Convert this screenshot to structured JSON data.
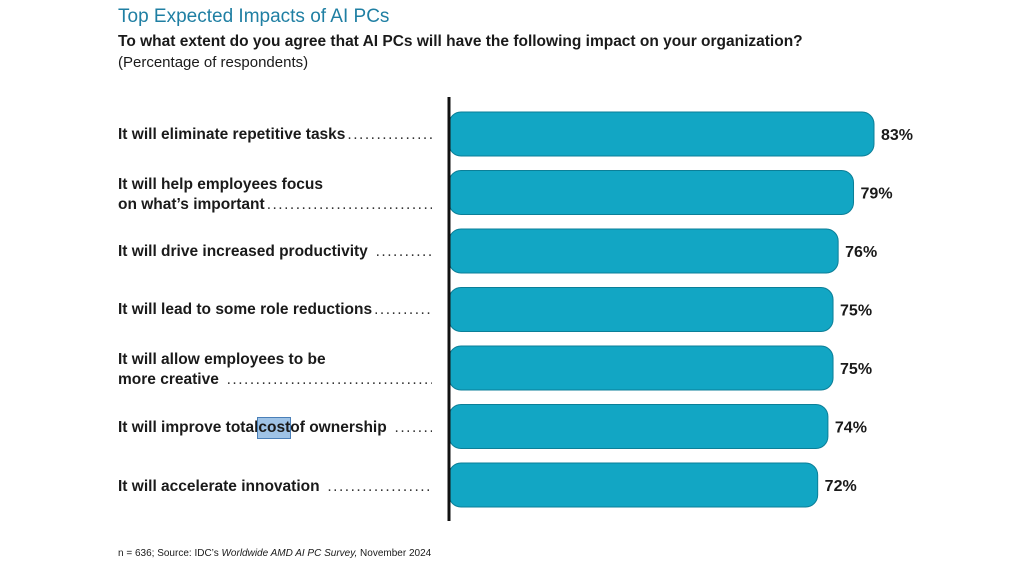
{
  "header": {
    "title": "Top Expected Impacts of AI PCs",
    "question": "To what extent do you agree that AI PCs will have the following impact on your organization?",
    "note": "(Percentage of respondents)"
  },
  "rows": [
    {
      "lines": [
        "It will eliminate repetitive tasks"
      ],
      "value_label": "83%"
    },
    {
      "lines": [
        "It will help employees focus",
        "on what’s important"
      ],
      "value_label": "79%"
    },
    {
      "lines": [
        "It will drive increased productivity"
      ],
      "value_label": "76%"
    },
    {
      "lines": [
        "It will lead to some role reductions"
      ],
      "value_label": "75%"
    },
    {
      "lines": [
        "It will allow employees to be",
        "more creative"
      ],
      "value_label": "75%"
    },
    {
      "lines": [
        "It will improve total ",
        "cost",
        " of ownership"
      ],
      "value_label": "74%"
    },
    {
      "lines": [
        "It will accelerate innovation"
      ],
      "value_label": "72%"
    }
  ],
  "footer": {
    "prefix": "n = 636; Source: IDC’s ",
    "italic": "Worldwide AMD AI PC Survey,",
    "suffix": " November 2024"
  },
  "chart_data": {
    "type": "bar",
    "orientation": "horizontal",
    "title": "Top Expected Impacts of AI PCs",
    "categories": [
      "It will eliminate repetitive tasks",
      "It will help employees focus on what’s important",
      "It will drive increased productivity",
      "It will lead to some role reductions",
      "It will allow employees to be more creative",
      "It will improve total cost of ownership",
      "It will accelerate innovation"
    ],
    "values": [
      83,
      79,
      76,
      75,
      75,
      74,
      72
    ],
    "unit": "%",
    "xlim": [
      0,
      100
    ],
    "bar_color": "#12a6c4",
    "bar_edge_color": "#0b7f98",
    "axis_color": "#111111"
  }
}
